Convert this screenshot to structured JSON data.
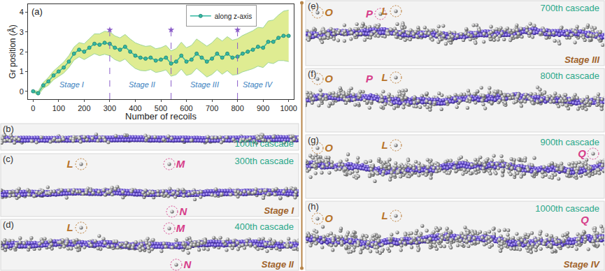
{
  "chart_data": {
    "type": "line",
    "panel_label": "(a)",
    "x_label": "Number of recoils",
    "y_label": "Gr position (Å)",
    "x": [
      0,
      20,
      40,
      60,
      80,
      100,
      120,
      140,
      160,
      180,
      200,
      220,
      240,
      260,
      280,
      300,
      320,
      340,
      360,
      380,
      400,
      420,
      440,
      460,
      480,
      500,
      520,
      540,
      560,
      580,
      600,
      620,
      640,
      660,
      680,
      700,
      720,
      740,
      760,
      780,
      800,
      820,
      840,
      860,
      880,
      900,
      920,
      940,
      960,
      980,
      1000
    ],
    "series": [
      {
        "name": "along z-axis",
        "color": "#35b8a2",
        "marker": "circle",
        "values": [
          0,
          -0.1,
          0.3,
          0.5,
          0.8,
          1.0,
          1.2,
          1.5,
          1.9,
          2.1,
          2.0,
          2.2,
          2.4,
          2.35,
          2.45,
          2.4,
          2.2,
          2.1,
          2.25,
          2.0,
          1.8,
          1.7,
          1.65,
          1.7,
          1.55,
          1.6,
          1.7,
          1.4,
          1.5,
          1.8,
          1.5,
          1.6,
          1.9,
          1.7,
          1.5,
          1.65,
          1.9,
          1.7,
          1.9,
          1.7,
          1.75,
          1.9,
          2.0,
          2.1,
          2.25,
          2.2,
          2.5,
          2.5,
          2.7,
          2.8,
          2.8
        ]
      }
    ],
    "band": {
      "color": "#dfec92",
      "lower": [
        -0.05,
        -0.2,
        0.15,
        0.3,
        0.58,
        0.75,
        0.92,
        1.2,
        1.57,
        1.74,
        1.6,
        1.75,
        1.9,
        1.8,
        1.87,
        1.8,
        1.6,
        1.5,
        1.63,
        1.36,
        1.15,
        1.05,
        1.03,
        1.1,
        0.95,
        1.0,
        1.08,
        0.76,
        0.84,
        1.12,
        0.8,
        0.88,
        1.16,
        0.94,
        0.72,
        0.85,
        1.08,
        0.86,
        1.04,
        0.82,
        0.85,
        0.98,
        1.06,
        1.14,
        1.27,
        1.2,
        1.45,
        1.4,
        1.55,
        1.55,
        1.5
      ],
      "upper": [
        0.05,
        0.0,
        0.45,
        0.7,
        1.02,
        1.25,
        1.48,
        1.8,
        2.23,
        2.46,
        2.4,
        2.65,
        2.9,
        2.9,
        3.03,
        3.0,
        2.8,
        2.7,
        2.87,
        2.64,
        2.45,
        2.35,
        2.27,
        2.3,
        2.15,
        2.2,
        2.32,
        2.04,
        2.16,
        2.48,
        2.2,
        2.32,
        2.64,
        2.46,
        2.28,
        2.45,
        2.72,
        2.54,
        2.76,
        2.58,
        2.65,
        2.82,
        2.94,
        3.06,
        3.23,
        3.2,
        3.55,
        3.6,
        3.85,
        4.05,
        4.1
      ]
    },
    "dividers": {
      "x": [
        300,
        540,
        800
      ],
      "top": 3.1,
      "color": "#8a5cc8"
    },
    "annotations": [
      {
        "text": "Stage I",
        "x": 150,
        "y": 0.35
      },
      {
        "text": "Stage II",
        "x": 425,
        "y": 0.35
      },
      {
        "text": "Stage III",
        "x": 670,
        "y": 0.35
      },
      {
        "text": "Stage IV",
        "x": 880,
        "y": 0.35
      }
    ],
    "xlim": [
      -20,
      1020
    ],
    "ylim": [
      -0.4,
      4.4
    ],
    "xticks": [
      0,
      100,
      200,
      300,
      400,
      500,
      600,
      700,
      800,
      900,
      1000
    ],
    "yticks": [
      0,
      1,
      2,
      3,
      4
    ],
    "legend": "top right",
    "grid": false
  },
  "snapshots": [
    {
      "label": "(b)",
      "caption": "100th cascade",
      "letters": []
    },
    {
      "label": "(c)",
      "caption": "300th cascade",
      "stage": "Stage I",
      "letters": [
        {
          "text": "L",
          "color": "#b8742a"
        },
        {
          "text": "M",
          "color": "#d63d8a"
        },
        {
          "text": "N",
          "color": "#d63d8a"
        }
      ]
    },
    {
      "label": "(d)",
      "caption": "400th cascade",
      "stage": "Stage II",
      "letters": [
        {
          "text": "L",
          "color": "#b8742a"
        },
        {
          "text": "M",
          "color": "#d63d8a"
        },
        {
          "text": "N",
          "color": "#d63d8a"
        }
      ]
    },
    {
      "label": "(e)",
      "caption": "700th cascade",
      "stage": "Stage III",
      "letters": [
        {
          "text": "O",
          "color": "#b8742a"
        },
        {
          "text": "P",
          "color": "#d63d8a"
        },
        {
          "text": "L",
          "color": "#b8742a"
        }
      ]
    },
    {
      "label": "(f)",
      "caption": "800th cascade",
      "letters": [
        {
          "text": "O",
          "color": "#b8742a"
        },
        {
          "text": "P",
          "color": "#d63d8a"
        },
        {
          "text": "L",
          "color": "#b8742a"
        }
      ]
    },
    {
      "label": "(g)",
      "caption": "900th cascade",
      "letters": [
        {
          "text": "O",
          "color": "#b8742a"
        },
        {
          "text": "L",
          "color": "#b8742a"
        },
        {
          "text": "Q",
          "color": "#d63d8a"
        }
      ]
    },
    {
      "label": "(h)",
      "caption": "1000th cascade",
      "stage": "Stage IV",
      "letters": [
        {
          "text": "O",
          "color": "#b8742a"
        },
        {
          "text": "L",
          "color": "#b8742a"
        },
        {
          "text": "Q",
          "color": "#d63d8a"
        }
      ]
    }
  ]
}
